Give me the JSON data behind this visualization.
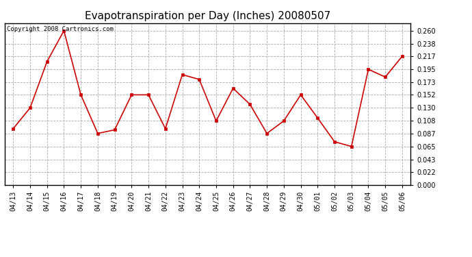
{
  "title": "Evapotranspiration per Day (Inches) 20080507",
  "copyright_text": "Copyright 2008 Cartronics.com",
  "dates": [
    "04/13",
    "04/14",
    "04/15",
    "04/16",
    "04/17",
    "04/18",
    "04/19",
    "04/20",
    "04/21",
    "04/22",
    "04/23",
    "04/24",
    "04/25",
    "04/26",
    "04/27",
    "04/28",
    "04/29",
    "04/30",
    "05/01",
    "05/02",
    "05/03",
    "05/04",
    "05/05",
    "05/06"
  ],
  "values": [
    0.095,
    0.13,
    0.208,
    0.26,
    0.152,
    0.087,
    0.093,
    0.152,
    0.152,
    0.095,
    0.186,
    0.178,
    0.108,
    0.163,
    0.136,
    0.087,
    0.108,
    0.152,
    0.113,
    0.073,
    0.065,
    0.195,
    0.182,
    0.217
  ],
  "line_color": "#cc0000",
  "marker": "s",
  "marker_size": 3,
  "background_color": "#ffffff",
  "grid_color": "#aaaaaa",
  "ylim": [
    0.0,
    0.2728
  ],
  "yticks": [
    0.0,
    0.022,
    0.043,
    0.065,
    0.087,
    0.108,
    0.13,
    0.152,
    0.173,
    0.195,
    0.217,
    0.238,
    0.26
  ],
  "title_fontsize": 11,
  "copyright_fontsize": 6.5,
  "tick_fontsize": 7,
  "y_tick_fontsize": 7
}
